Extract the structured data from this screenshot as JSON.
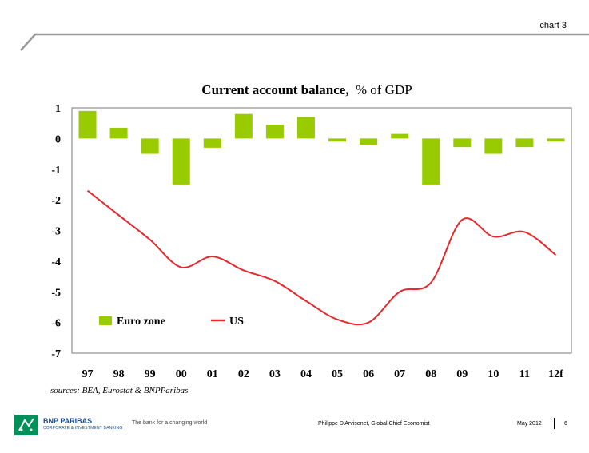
{
  "slide": {
    "tag": "chart 3"
  },
  "footer": {
    "brand": "BNP PARIBAS",
    "brand_sub": "CORPORATE & INVESTMENT BANKING",
    "tagline": "The bank for a changing world",
    "author": "Philippe D'Arvisenet, Global Chief Economist",
    "date": "May 2012",
    "page": "6"
  },
  "chart_data": {
    "type": "bar",
    "title": "Current account balance,",
    "title_suffix": "% of GDP",
    "categories": [
      "97",
      "98",
      "99",
      "00",
      "01",
      "02",
      "03",
      "04",
      "05",
      "06",
      "07",
      "08",
      "09",
      "10",
      "11",
      "12f"
    ],
    "series": [
      {
        "name": "Euro zone",
        "type": "bar",
        "color": "#99cc00",
        "values": [
          0.9,
          0.35,
          -0.5,
          -1.5,
          -0.3,
          0.8,
          0.45,
          0.7,
          -0.1,
          -0.2,
          0.15,
          -1.5,
          -0.28,
          -0.5,
          -0.28,
          -0.1
        ]
      },
      {
        "name": "US",
        "type": "line",
        "color": "#e8262b",
        "values": [
          -1.7,
          -2.5,
          -3.3,
          -4.2,
          -3.85,
          -4.3,
          -4.65,
          -5.3,
          -5.9,
          -6.0,
          -5.0,
          -4.7,
          -2.65,
          -3.2,
          -3.05,
          -3.8
        ]
      }
    ],
    "y_ticks": [
      "1",
      "0",
      "-1",
      "-2",
      "-3",
      "-4",
      "-5",
      "-6",
      "-7"
    ],
    "ylim": [
      -7,
      1
    ],
    "legend_position": "bottom-left",
    "source": "sources: BEA, Eurostat & BNPParibas"
  }
}
